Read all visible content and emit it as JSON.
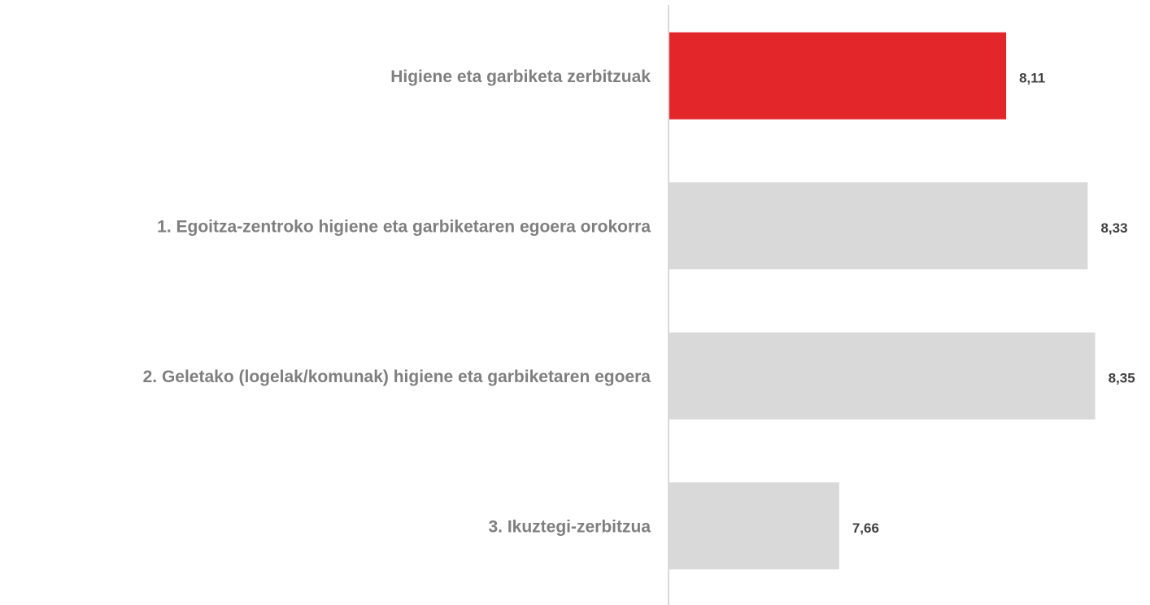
{
  "chart_data": {
    "type": "bar",
    "orientation": "horizontal",
    "categories": [
      "Higiene eta garbiketa zerbitzuak",
      "1. Egoitza-zentroko higiene eta garbiketaren egoera orokorra",
      "2. Geletako (logelak/komunak) higiene eta garbiketaren egoera",
      "3. Ikuztegi-zerbitzua"
    ],
    "values": [
      8.11,
      8.33,
      8.35,
      7.66
    ],
    "value_labels": [
      "8,11",
      "8,33",
      "8,35",
      "7,66"
    ],
    "colors": [
      "#e3262a",
      "#d9d9d9",
      "#d9d9d9",
      "#d9d9d9"
    ],
    "xlim": [
      7.2,
      8.5
    ]
  }
}
